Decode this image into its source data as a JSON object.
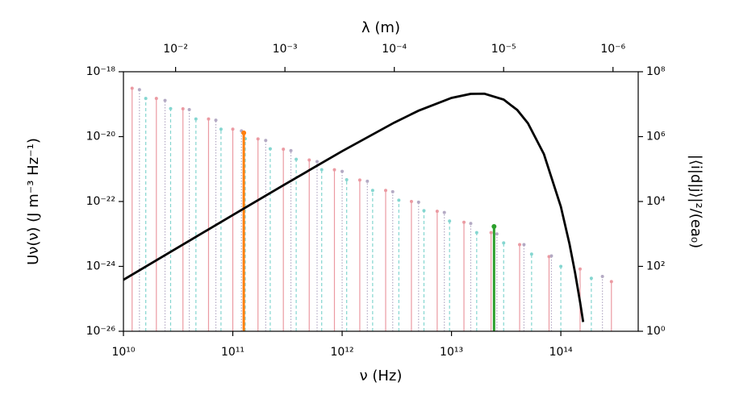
{
  "chart_data": {
    "type": "line",
    "xlabel": "ν (Hz)",
    "ylabel": "Uν(ν) (J m⁻³ Hz⁻¹)",
    "y2label": "|⟨i|d|j⟩|²/(ea₀)",
    "x2label": "λ (m)",
    "xscale": "log",
    "yscale": "log",
    "y2scale": "log",
    "x2scale": "log",
    "xlim": [
      10000000000.0,
      510000000000000.0
    ],
    "xticks": [
      {
        "value": 10000000000.0,
        "label": "10¹⁰"
      },
      {
        "value": 100000000000.0,
        "label": "10¹¹"
      },
      {
        "value": 1000000000000.0,
        "label": "10¹²"
      },
      {
        "value": 10000000000000.0,
        "label": "10¹³"
      },
      {
        "value": 100000000000000.0,
        "label": "10¹⁴"
      }
    ],
    "ylim": [
      1e-26,
      1e-18
    ],
    "yticks": [
      {
        "value": 1e-26,
        "label": "10⁻²⁶"
      },
      {
        "value": 1e-24,
        "label": "10⁻²⁴"
      },
      {
        "value": 1e-22,
        "label": "10⁻²²"
      },
      {
        "value": 1e-20,
        "label": "10⁻²⁰"
      },
      {
        "value": 1e-18,
        "label": "10⁻¹⁸"
      }
    ],
    "y2lim": [
      1,
      100000000.0
    ],
    "y2ticks": [
      {
        "value": 1,
        "label": "10⁰"
      },
      {
        "value": 100,
        "label": "10²"
      },
      {
        "value": 10000,
        "label": "10⁴"
      },
      {
        "value": 1000000,
        "label": "10⁶"
      },
      {
        "value": 100000000,
        "label": "10⁸"
      }
    ],
    "x2lim": [
      0.02998,
      5.88e-07
    ],
    "x2ticks": [
      {
        "value": 0.01,
        "label": "10⁻²"
      },
      {
        "value": 0.001,
        "label": "10⁻³"
      },
      {
        "value": 0.0001,
        "label": "10⁻⁴"
      },
      {
        "value": 1e-05,
        "label": "10⁻⁵"
      },
      {
        "value": 1e-06,
        "label": "10⁻⁶"
      }
    ],
    "series": [
      {
        "type": "line",
        "color": "#000000",
        "x": [
          10000000000.0,
          100000000000.0,
          300000000000.0,
          1000000000000.0,
          3000000000000.0,
          5000000000000.0,
          10000000000000.0,
          15000000000000.0,
          20000000000000.0,
          30000000000000.0,
          40000000000000.0,
          50000000000000.0,
          70000000000000.0,
          100000000000000.0,
          120000000000000.0,
          135000000000000.0,
          150000000000000.0,
          160000000000000.0
        ],
        "values": [
          3.86e-25,
          3.83e-23,
          3.39e-22,
          3.56e-21,
          2.71e-20,
          6.3e-20,
          1.563e-19,
          2.08e-19,
          2.1e-19,
          1.385e-19,
          6.58e-20,
          2.59e-20,
          2.9e-21,
          6.95e-23,
          4.9e-24,
          6.34e-25,
          7.87e-26,
          1.93e-26
        ]
      },
      {
        "type": "stem",
        "axis": "y2",
        "color": "#eb9aa2",
        "dash": "solid",
        "x": [
          12000000000.0,
          20000000000.0,
          35000000000.0,
          60000000000.0,
          100000000000.0,
          170000000000.0,
          290000000000.0,
          500000000000.0,
          850000000000.0,
          1450000000000.0,
          2500000000000.0,
          4300000000000.0,
          7400000000000.0,
          13000000000000.0,
          23000000000000.0,
          42000000000000.0,
          78000000000000.0,
          150000000000000.0,
          290000000000000.0
        ],
        "values": [
          31000000.0,
          15000000.0,
          7200000.0,
          3500000.0,
          1700000.0,
          850000.0,
          410000.0,
          190000.0,
          95000.0,
          46000.0,
          22000.0,
          10000.0,
          5000.0,
          2300.0,
          1100.0,
          470,
          200,
          83,
          34
        ]
      },
      {
        "type": "stem",
        "axis": "y2",
        "color": "#84d6d0",
        "dash": "dashed",
        "x": [
          16000000000.0,
          27000000000.0,
          46000000000.0,
          78000000000.0,
          130000000000.0,
          220000000000.0,
          380000000000.0,
          650000000000.0,
          1100000000000.0,
          1900000000000.0,
          3300000000000.0,
          5600000000000.0,
          9600000000000.0,
          17000000000000.0,
          30000000000000.0,
          54000000000000.0,
          100000000000000.0,
          190000000000000.0
        ],
        "values": [
          15000000.0,
          7300000.0,
          3500000.0,
          1700000.0,
          860000.0,
          420000.0,
          200000.0,
          96000.0,
          47000.0,
          22000.0,
          11000.0,
          5200.0,
          2500.0,
          1100.0,
          530,
          240,
          100,
          43
        ]
      },
      {
        "type": "stem",
        "axis": "y2",
        "color": "#b4aac4",
        "dash": "dotted",
        "x": [
          14000000000.0,
          24000000000.0,
          40000000000.0,
          70000000000.0,
          120000000000.0,
          200000000000.0,
          340000000000.0,
          590000000000.0,
          1000000000000.0,
          1700000000000.0,
          2900000000000.0,
          5000000000000.0,
          8600000000000.0,
          15000000000000.0,
          26000000000000.0,
          46000000000000.0,
          82000000000000.0,
          240000000000000.0
        ],
        "values": [
          28000000.0,
          13000000.0,
          6800000.0,
          3200000.0,
          1500000.0,
          760000.0,
          370000.0,
          170000.0,
          85000.0,
          42000.0,
          20000.0,
          9500.0,
          4600.0,
          2100.0,
          1000,
          470,
          210,
          49
        ]
      },
      {
        "type": "stem",
        "axis": "y2",
        "color": "#ff7f0e",
        "dash": "bold",
        "x": [
          126000000000.0
        ],
        "values": [
          1300000.0
        ]
      },
      {
        "type": "stem",
        "axis": "y2",
        "color": "#2ca02c",
        "dash": "bold",
        "x": [
          24500000000000.0
        ],
        "values": [
          1700.0
        ]
      }
    ]
  }
}
